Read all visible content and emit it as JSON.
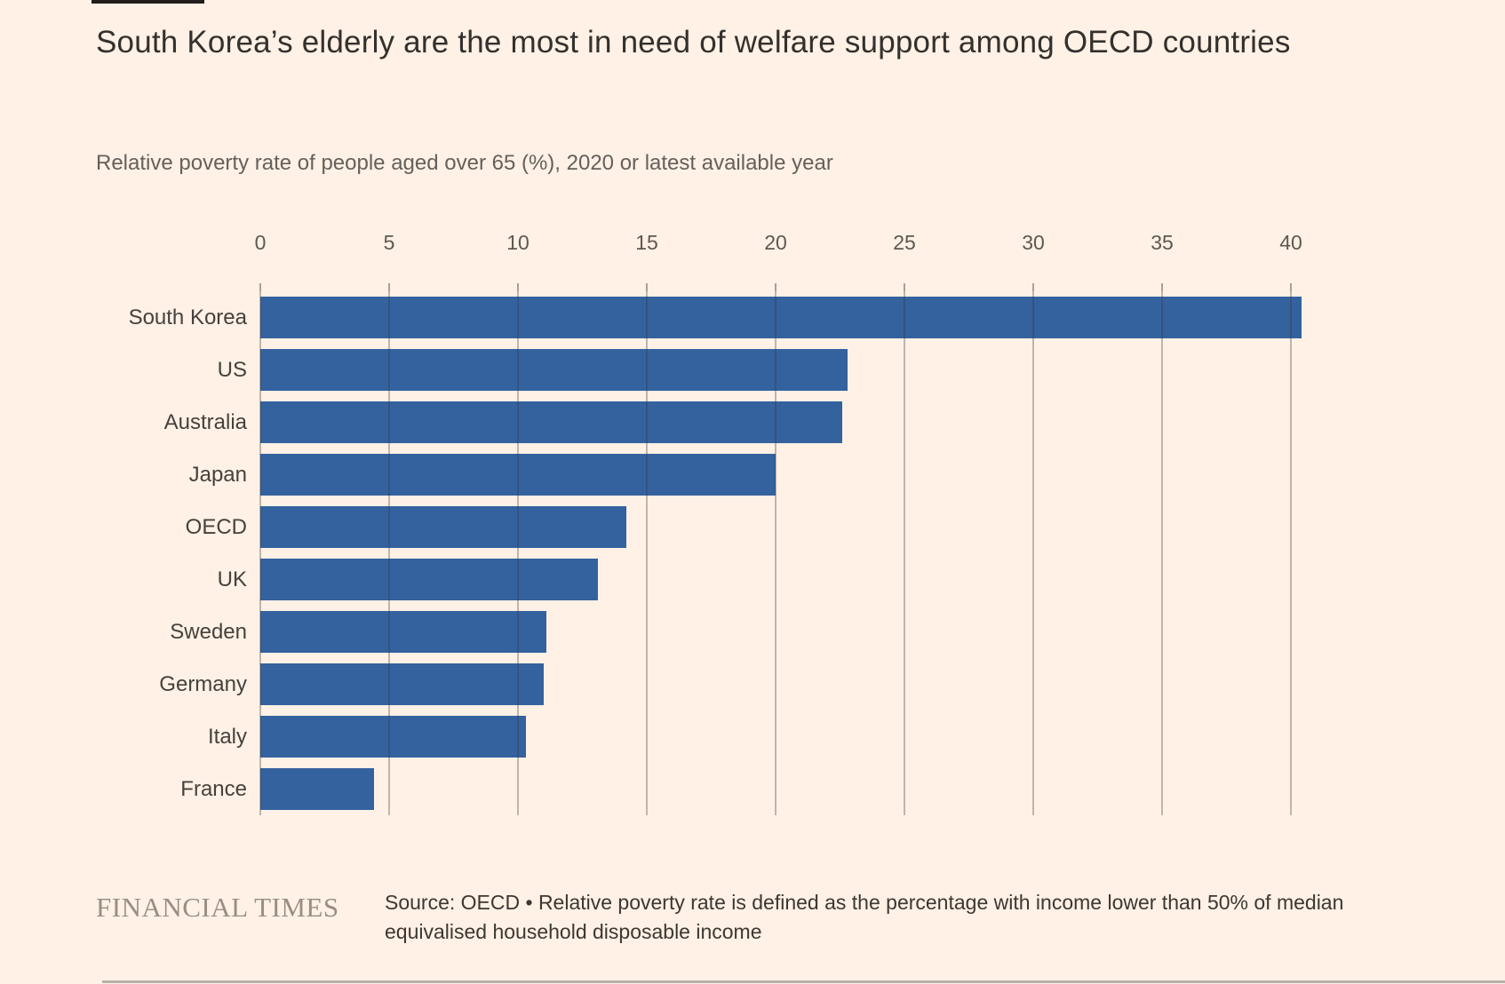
{
  "page": {
    "background": "#fff1e5",
    "title": "South Korea’s elderly are the most in need of welfare support among OECD countries",
    "subtitle": "Relative poverty rate of people aged over 65 (%), 2020 or latest available year"
  },
  "chart_data": {
    "type": "bar",
    "orientation": "horizontal",
    "title": "South Korea’s elderly are the most in need of welfare support among OECD countries",
    "subtitle": "Relative poverty rate of people aged over 65 (%), 2020 or latest available year",
    "categories": [
      "South Korea",
      "US",
      "Australia",
      "Japan",
      "OECD",
      "UK",
      "Sweden",
      "Germany",
      "Italy",
      "France"
    ],
    "values": [
      40.4,
      22.8,
      22.6,
      20.0,
      14.2,
      13.1,
      11.1,
      11.0,
      10.3,
      4.4
    ],
    "xlabel": "",
    "ylabel": "",
    "xlim": [
      0,
      40
    ],
    "xticks": [
      0,
      5,
      10,
      15,
      20,
      25,
      30,
      35,
      40
    ],
    "grid": true,
    "gridlines_over_bars": true,
    "legend": false,
    "bar_color": "#33629f",
    "gridline_color": "rgba(62,54,46,0.32)",
    "tick_label_color": "#5d5852",
    "category_label_color": "#46413d"
  },
  "footer": {
    "brand": "FINANCIAL TIMES",
    "source": "Source: OECD • Relative poverty rate is defined as the percentage with income lower than 50% of median equivalised household disposable income"
  }
}
